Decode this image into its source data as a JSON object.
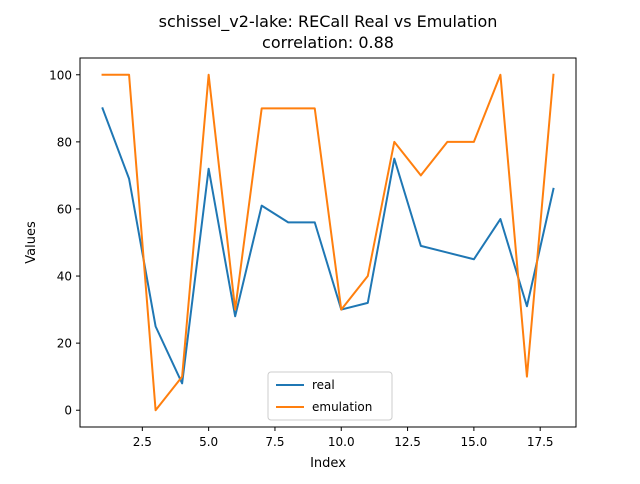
{
  "chart_data": {
    "type": "line",
    "title": "schissel_v2-lake: RECall Real vs Emulation",
    "subtitle": "correlation: 0.88",
    "xlabel": "Index",
    "ylabel": "Values",
    "xlim": [
      0.15,
      18.85
    ],
    "ylim": [
      -5,
      105
    ],
    "x_ticks": [
      2.5,
      5.0,
      7.5,
      10.0,
      12.5,
      15.0,
      17.5
    ],
    "x_tick_labels": [
      "2.5",
      "5.0",
      "7.5",
      "10.0",
      "12.5",
      "15.0",
      "17.5"
    ],
    "y_ticks": [
      0,
      20,
      40,
      60,
      80,
      100
    ],
    "y_tick_labels": [
      "0",
      "20",
      "40",
      "60",
      "80",
      "100"
    ],
    "grid": false,
    "legend_position": "lower-center",
    "x": [
      1,
      2,
      3,
      4,
      5,
      6,
      7,
      8,
      9,
      10,
      11,
      12,
      13,
      14,
      15,
      16,
      17,
      18
    ],
    "series": [
      {
        "name": "real",
        "color": "#1f77b4",
        "values": [
          90,
          69,
          25,
          8,
          72,
          28,
          61,
          56,
          56,
          30,
          32,
          75,
          49,
          47,
          45,
          57,
          31,
          66
        ]
      },
      {
        "name": "emulation",
        "color": "#ff7f0e",
        "values": [
          100,
          100,
          0,
          10,
          100,
          30,
          90,
          90,
          90,
          30,
          40,
          80,
          70,
          80,
          80,
          100,
          10,
          100
        ]
      }
    ]
  }
}
